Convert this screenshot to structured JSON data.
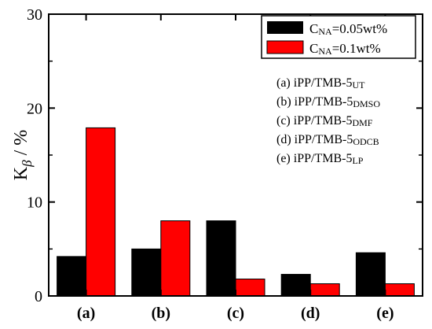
{
  "chart_data": {
    "type": "bar",
    "title": "",
    "xlabel": "",
    "ylabel": "Kβ / %",
    "ylabel_parts": {
      "main": "K",
      "sub": "β",
      "rest": " / %"
    },
    "ylim": [
      0,
      30
    ],
    "yticks": [
      "0",
      "10",
      "20",
      "30"
    ],
    "categories": [
      "(a)",
      "(b)",
      "(c)",
      "(d)",
      "(e)"
    ],
    "series": [
      {
        "name": "CNA=0.05wt%",
        "name_parts": {
          "main": "C",
          "sub": "NA",
          "rest": "=0.05wt%"
        },
        "color": "#000000",
        "values": [
          4.2,
          5.0,
          8.0,
          2.3,
          4.6
        ]
      },
      {
        "name": "CNA=0.1wt%",
        "name_parts": {
          "main": "C",
          "sub": "NA",
          "rest": "=0.1wt%"
        },
        "color": "#ff0000",
        "values": [
          17.9,
          8.0,
          1.8,
          1.3,
          1.3
        ]
      }
    ],
    "legend_position": "top-right",
    "grid": false,
    "annotations": [
      {
        "main": "(a) iPP/TMB-5",
        "sub": "UT"
      },
      {
        "main": "(b) iPP/TMB-5",
        "sub": "DMSO"
      },
      {
        "main": "(c) iPP/TMB-5",
        "sub": "DMF"
      },
      {
        "main": "(d) iPP/TMB-5",
        "sub": "ODCB"
      },
      {
        "main": "(e) iPP/TMB-5",
        "sub": "LP"
      }
    ]
  }
}
